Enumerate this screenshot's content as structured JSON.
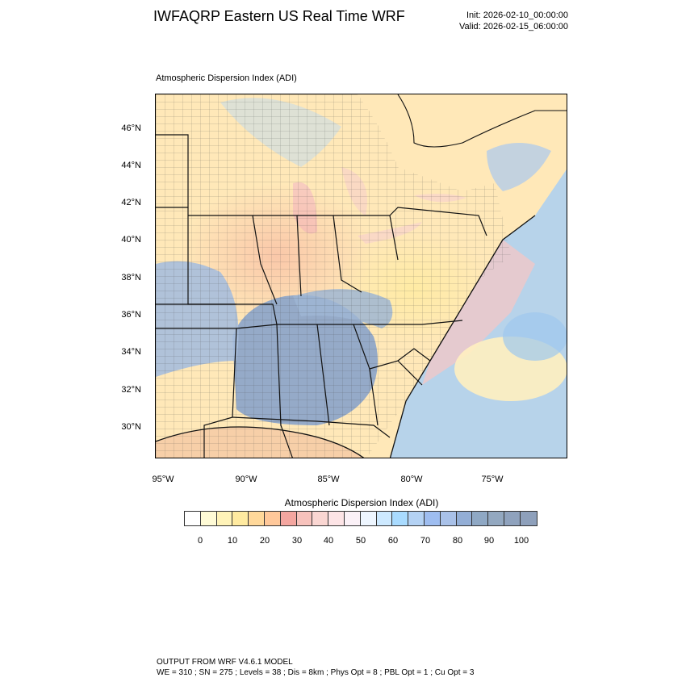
{
  "header": {
    "title": "IWFAQRP Eastern US Real Time WRF",
    "init": "Init: 2026-02-10_00:00:00",
    "valid": "Valid: 2026-02-15_06:00:00"
  },
  "map": {
    "field_label": "Atmospheric Dispersion Index   (ADI)",
    "lat_ticks": [
      "46°N",
      "44°N",
      "42°N",
      "40°N",
      "38°N",
      "36°N",
      "34°N",
      "32°N",
      "30°N"
    ],
    "lon_ticks": [
      "95°W",
      "90°W",
      "85°W",
      "80°W",
      "75°W"
    ]
  },
  "colorbar": {
    "label": "Atmospheric Dispersion Index  (ADI)",
    "colors": [
      "#ffffff",
      "#fffbd6",
      "#fff3b8",
      "#ffeaa0",
      "#ffd89a",
      "#ffc89a",
      "#f4a6a0",
      "#f7c2bc",
      "#fad6d2",
      "#fde4e6",
      "#fbf1f7",
      "#eef6ff",
      "#cde9ff",
      "#a9dbff",
      "#b4d2f4",
      "#9ebdf0",
      "#a9c1e8",
      "#93aed6",
      "#8fa8c4",
      "#93a8c0",
      "#8fa2bd",
      "#8ea0bb"
    ],
    "tick_labels": [
      "0",
      "10",
      "20",
      "30",
      "40",
      "50",
      "60",
      "70",
      "80",
      "90",
      "100"
    ]
  },
  "footer": {
    "line1": "OUTPUT FROM WRF V4.6.1 MODEL",
    "line2": "WE = 310 ; SN = 275 ; Levels = 38 ; Dis = 8km ; Phys Opt = 8 ; PBL Opt = 1 ; Cu Opt = 3"
  }
}
